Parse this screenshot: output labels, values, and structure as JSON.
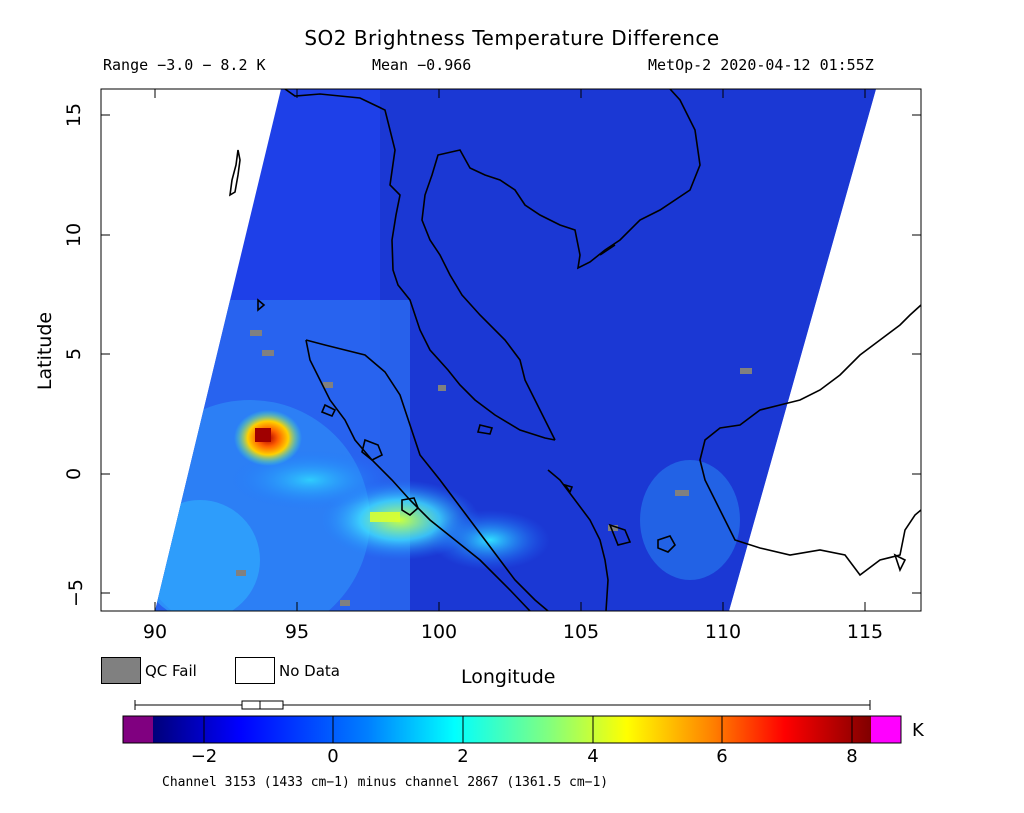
{
  "title": "SO2 Brightness Temperature Difference",
  "subtitle": {
    "range": "Range −3.0 − 8.2 K",
    "mean": "Mean −0.966",
    "satellite_time": "MetOp-2 2020-04-12 01:55Z"
  },
  "axes": {
    "xlabel": "Longitude",
    "ylabel": "Latitude",
    "x_ticks": [
      "90",
      "95",
      "100",
      "105",
      "110",
      "115"
    ],
    "y_ticks": [
      "15",
      "10",
      "5",
      "0",
      "−5"
    ],
    "xlim": [
      88.2,
      117.0
    ],
    "ylim": [
      -5.8,
      16.1
    ]
  },
  "legend": {
    "qc_fail_label": "QC Fail",
    "no_data_label": "No Data",
    "qc_fail_color": "#808080",
    "no_data_color": "#ffffff"
  },
  "colorbar": {
    "ticks": [
      "−2",
      "0",
      "2",
      "4",
      "6",
      "8"
    ],
    "unit": "K",
    "range": [
      -3.0,
      8.2
    ],
    "under_color": "#800080",
    "over_color": "#ff00ff",
    "box_whisker": {
      "min": -3.0,
      "q1": -1.4,
      "median": -1.1,
      "q3": -0.8,
      "max": 8.2
    }
  },
  "footer": "Channel 3153 (1433 cm−1) minus channel 2867 (1361.5 cm−1)",
  "map": {
    "swath_background_color": "#1e3ce6",
    "hotspots": [
      {
        "lon": 93.8,
        "lat": 1.6,
        "value": 8.0
      },
      {
        "lon": 93.5,
        "lat": 2.0,
        "value": 5.2
      },
      {
        "lon": 94.2,
        "lat": 1.0,
        "value": 4.5
      },
      {
        "lon": 98.5,
        "lat": -1.7,
        "value": 3.8
      },
      {
        "lon": 102.5,
        "lat": -3.0,
        "value": 2.5
      }
    ]
  }
}
